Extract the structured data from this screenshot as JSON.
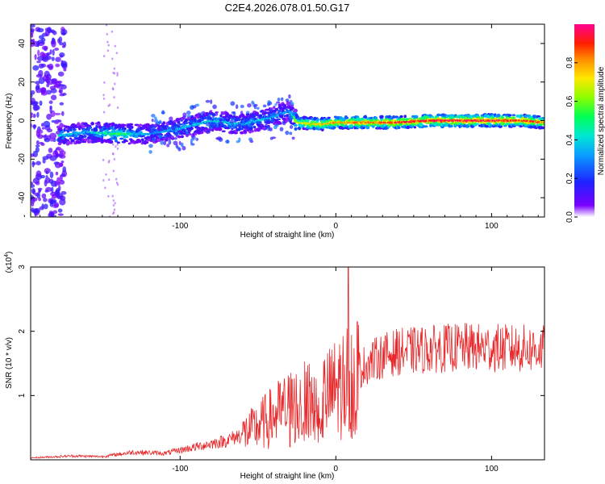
{
  "title": "C2E4.2026.078.01.50.G17",
  "chart_data": [
    {
      "type": "heatmap",
      "xlabel": "Height of straight line (km)",
      "ylabel": "Frequency (Hz)",
      "xlim": [
        -196,
        134
      ],
      "ylim": [
        -50,
        50
      ],
      "xticks": [
        -100,
        0,
        100
      ],
      "yticks": [
        -40,
        -20,
        0,
        20,
        40
      ],
      "colorbar": {
        "label": "Normalized spectral amplitude",
        "range": [
          0.0,
          1.0
        ],
        "ticks": [
          0.0,
          0.2,
          0.4,
          0.6,
          0.8
        ]
      },
      "ridge": {
        "x": [
          -180,
          -160,
          -140,
          -120,
          -100,
          -80,
          -60,
          -40,
          -30,
          -25,
          -10,
          0,
          20,
          40,
          60,
          80,
          100,
          120,
          134
        ],
        "frequency": [
          -8,
          -6,
          -7,
          -7,
          -4,
          0,
          -2,
          2,
          5,
          -1,
          -2,
          -1,
          -1,
          -1,
          0,
          0,
          0,
          0,
          -1
        ],
        "amplitude": [
          0.4,
          0.35,
          0.55,
          0.3,
          0.35,
          0.4,
          0.4,
          0.35,
          0.3,
          0.7,
          0.75,
          0.8,
          0.85,
          0.9,
          0.95,
          0.95,
          0.95,
          0.9,
          0.85
        ]
      }
    },
    {
      "type": "line",
      "series": [
        {
          "name": "SNR",
          "color": "#e8282a"
        }
      ],
      "xlabel": "Height of straight line (km)",
      "ylabel": "SNR (10 * v/v)",
      "y_multiplier": "(x10",
      "y_multiplier_exp": "4",
      "y_multiplier_close": ")",
      "xlim": [
        -196,
        134
      ],
      "ylim": [
        0,
        3
      ],
      "xticks": [
        -100,
        0,
        100
      ],
      "yticks": [
        1,
        2,
        3
      ],
      "trend": {
        "x": [
          -196,
          -170,
          -150,
          -130,
          -110,
          -90,
          -70,
          -55,
          -45,
          -35,
          -25,
          -15,
          -5,
          0,
          10,
          20,
          30,
          40,
          60,
          80,
          100,
          120,
          134
        ],
        "y": [
          0.03,
          0.06,
          0.05,
          0.12,
          0.1,
          0.2,
          0.3,
          0.45,
          0.6,
          0.75,
          0.85,
          0.9,
          1.0,
          1.1,
          1.3,
          1.5,
          1.62,
          1.68,
          1.72,
          1.75,
          1.74,
          1.73,
          1.72
        ]
      },
      "spike": {
        "x": 8,
        "y": 3.0
      }
    }
  ]
}
